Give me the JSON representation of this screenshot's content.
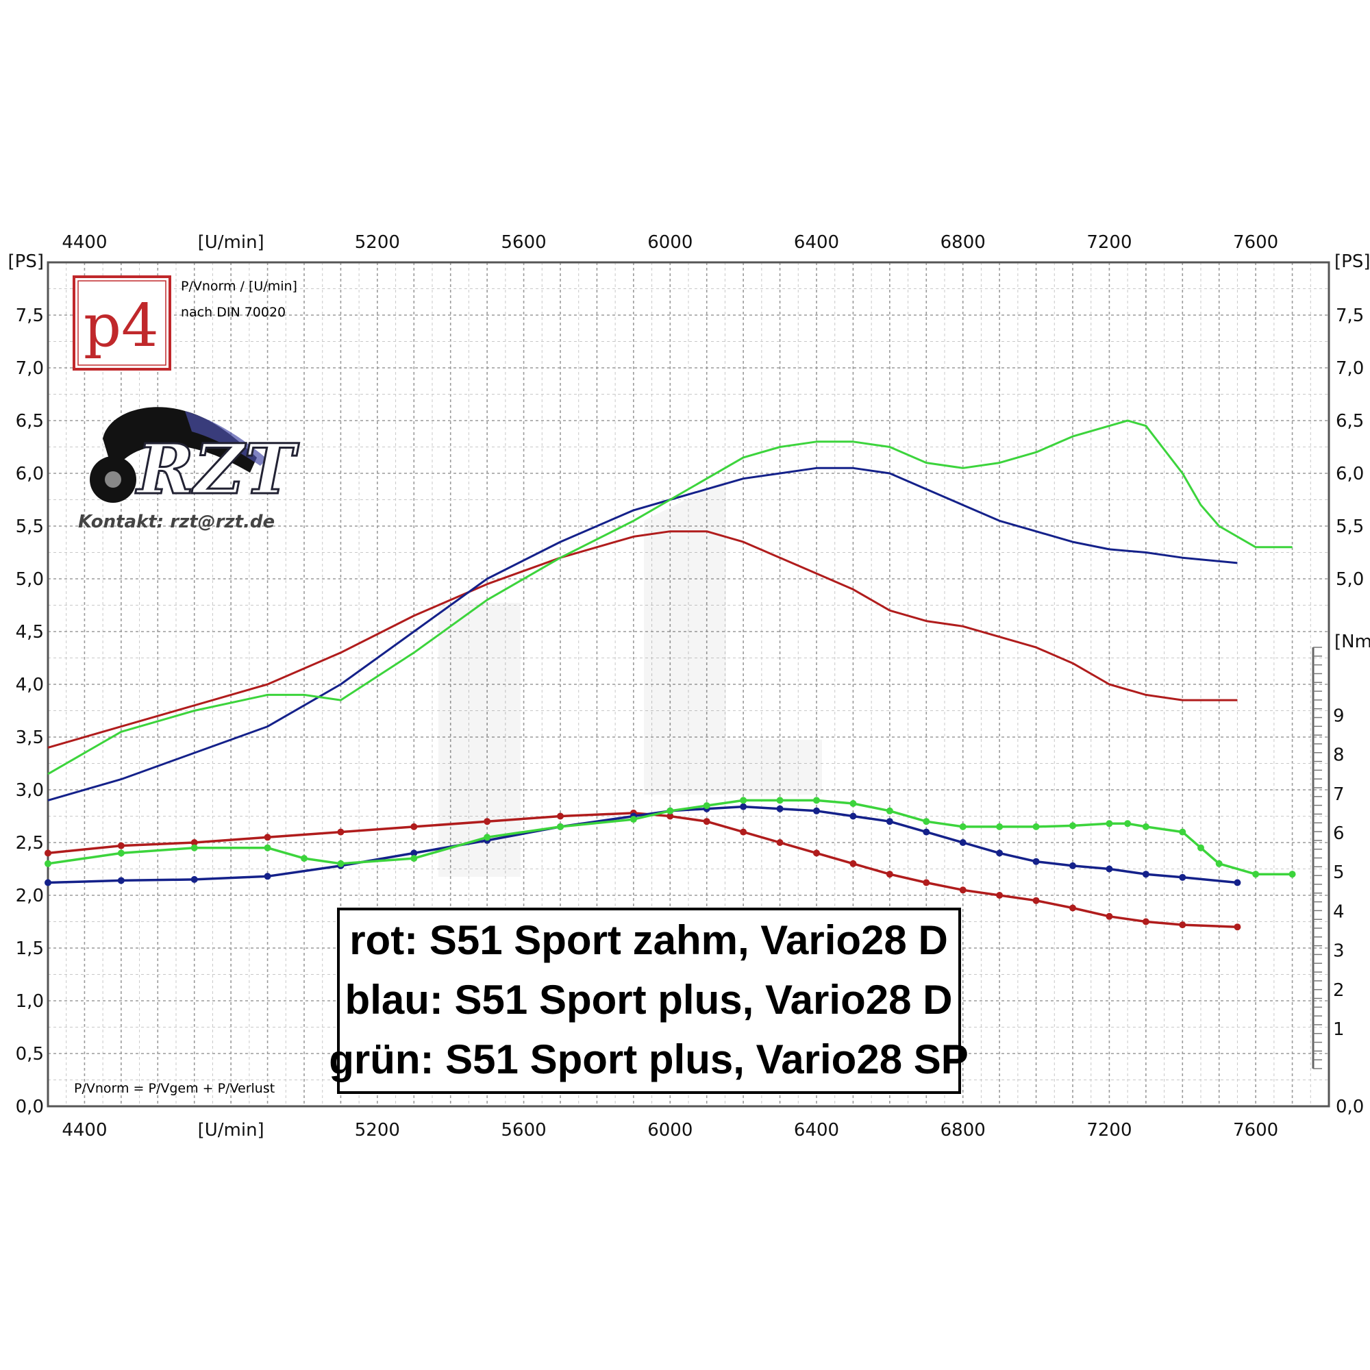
{
  "chart_data": {
    "type": "line",
    "x_axis": {
      "unit_label": "[U/min]",
      "tick_labels": [
        "4400",
        "5200",
        "5600",
        "6000",
        "6400",
        "6800",
        "7200",
        "7600"
      ],
      "range": [
        4300,
        7800
      ]
    },
    "y_axis_left": {
      "unit_label": "[PS]",
      "tick_labels": [
        "0,0",
        "0,5",
        "1,0",
        "1,5",
        "2,0",
        "2,5",
        "3,0",
        "3,5",
        "4,0",
        "4,5",
        "5,0",
        "5,5",
        "6,0",
        "6,5",
        "7,0",
        "7,5"
      ],
      "range": [
        0,
        8.0
      ]
    },
    "y_axis_right": {
      "unit_label_top": "[PS]",
      "tick_labels": [
        "0,0",
        "5,0",
        "5,5",
        "6,0",
        "6,5",
        "7,0",
        "7,5"
      ],
      "unit_label_mid": "[Nm]",
      "torque_tick_labels": [
        "1",
        "2",
        "3",
        "4",
        "5",
        "6",
        "7",
        "8",
        "9"
      ]
    },
    "grid": true,
    "series": [
      {
        "name": "rot",
        "color": "#b01c1c",
        "kind": "power",
        "x": [
          4300,
          4500,
          4700,
          4900,
          5100,
          5300,
          5500,
          5700,
          5900,
          6000,
          6100,
          6200,
          6300,
          6400,
          6500,
          6600,
          6700,
          6800,
          6900,
          7000,
          7100,
          7200,
          7300,
          7400,
          7550
        ],
        "y": [
          3.4,
          3.6,
          3.8,
          4.0,
          4.3,
          4.65,
          4.95,
          5.2,
          5.4,
          5.45,
          5.45,
          5.35,
          5.2,
          5.05,
          4.9,
          4.7,
          4.6,
          4.55,
          4.45,
          4.35,
          4.2,
          4.0,
          3.9,
          3.85,
          3.85
        ]
      },
      {
        "name": "blau",
        "color": "#14218a",
        "kind": "power",
        "x": [
          4300,
          4500,
          4700,
          4900,
          5100,
          5300,
          5500,
          5700,
          5900,
          6000,
          6100,
          6200,
          6300,
          6400,
          6500,
          6600,
          6700,
          6800,
          6900,
          7000,
          7100,
          7200,
          7300,
          7400,
          7550
        ],
        "y": [
          2.9,
          3.1,
          3.35,
          3.6,
          4.0,
          4.5,
          5.0,
          5.35,
          5.65,
          5.75,
          5.85,
          5.95,
          6.0,
          6.05,
          6.05,
          6.0,
          5.85,
          5.7,
          5.55,
          5.45,
          5.35,
          5.28,
          5.25,
          5.2,
          5.15
        ]
      },
      {
        "name": "grün",
        "color": "#3cd43c",
        "kind": "power",
        "x": [
          4300,
          4500,
          4700,
          4900,
          5000,
          5100,
          5300,
          5500,
          5700,
          5900,
          6000,
          6100,
          6200,
          6300,
          6400,
          6500,
          6600,
          6700,
          6800,
          6900,
          7000,
          7100,
          7200,
          7250,
          7300,
          7400,
          7450,
          7500,
          7600,
          7700
        ],
        "y": [
          3.15,
          3.55,
          3.75,
          3.9,
          3.9,
          3.85,
          4.3,
          4.8,
          5.2,
          5.55,
          5.75,
          5.95,
          6.15,
          6.25,
          6.3,
          6.3,
          6.25,
          6.1,
          6.05,
          6.1,
          6.2,
          6.35,
          6.45,
          6.5,
          6.45,
          6.0,
          5.7,
          5.5,
          5.3,
          5.3
        ]
      },
      {
        "name": "rot",
        "color": "#b01c1c",
        "kind": "torque",
        "x": [
          4300,
          4500,
          4700,
          4900,
          5100,
          5300,
          5500,
          5700,
          5900,
          6000,
          6100,
          6200,
          6300,
          6400,
          6500,
          6600,
          6700,
          6800,
          6900,
          7000,
          7100,
          7200,
          7300,
          7400,
          7550
        ],
        "y": [
          2.4,
          2.47,
          2.5,
          2.55,
          2.6,
          2.65,
          2.7,
          2.75,
          2.78,
          2.75,
          2.7,
          2.6,
          2.5,
          2.4,
          2.3,
          2.2,
          2.12,
          2.05,
          2.0,
          1.95,
          1.88,
          1.8,
          1.75,
          1.72,
          1.7
        ]
      },
      {
        "name": "blau",
        "color": "#14218a",
        "kind": "torque",
        "x": [
          4300,
          4500,
          4700,
          4900,
          5100,
          5300,
          5500,
          5700,
          5900,
          6000,
          6100,
          6200,
          6300,
          6400,
          6500,
          6600,
          6700,
          6800,
          6900,
          7000,
          7100,
          7200,
          7300,
          7400,
          7550
        ],
        "y": [
          2.12,
          2.14,
          2.15,
          2.18,
          2.28,
          2.4,
          2.52,
          2.65,
          2.75,
          2.8,
          2.82,
          2.84,
          2.82,
          2.8,
          2.75,
          2.7,
          2.6,
          2.5,
          2.4,
          2.32,
          2.28,
          2.25,
          2.2,
          2.17,
          2.12
        ]
      },
      {
        "name": "grün",
        "color": "#3cd43c",
        "kind": "torque",
        "x": [
          4300,
          4500,
          4700,
          4900,
          5000,
          5100,
          5300,
          5500,
          5700,
          5900,
          6000,
          6100,
          6200,
          6300,
          6400,
          6500,
          6600,
          6700,
          6800,
          6900,
          7000,
          7100,
          7200,
          7250,
          7300,
          7400,
          7450,
          7500,
          7600,
          7700
        ],
        "y": [
          2.3,
          2.4,
          2.45,
          2.45,
          2.35,
          2.3,
          2.35,
          2.55,
          2.65,
          2.72,
          2.8,
          2.85,
          2.9,
          2.9,
          2.9,
          2.87,
          2.8,
          2.7,
          2.65,
          2.65,
          2.65,
          2.66,
          2.68,
          2.68,
          2.65,
          2.6,
          2.45,
          2.3,
          2.2,
          2.2
        ]
      }
    ]
  },
  "logo": {
    "text": "p4",
    "note_line1": "P/Vnorm / [U/min]",
    "note_line2": "nach DIN 70020"
  },
  "rzt": {
    "text": "RZT",
    "contact": "Kontakt: rzt@rzt.de"
  },
  "formula": "P/Vnorm = P/Vgem + P/Verlust",
  "legend": {
    "line1": "rot: S51 Sport zahm, Vario28 D",
    "line2": "blau: S51 Sport plus, Vario28 D",
    "line3": "grün: S51 Sport plus, Vario28 SP"
  }
}
